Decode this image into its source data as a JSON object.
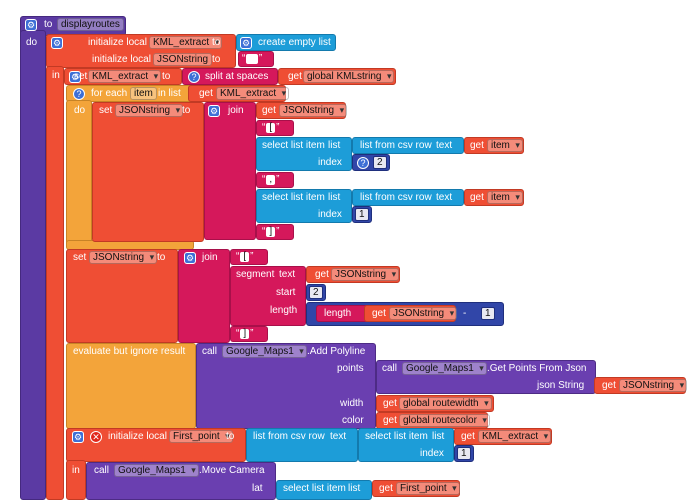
{
  "proc": {
    "to": "to",
    "name": "displayroutes",
    "do": "do"
  },
  "init1": {
    "initialize_local": "initialize local",
    "var1": "KML_extract",
    "to1": "to",
    "create_empty_list": "create empty list",
    "var2": "JSONstring",
    "to2": "to",
    "in": "in"
  },
  "set1": {
    "set": "set",
    "var": "KML_extract",
    "to": "to",
    "split_at_spaces": "split at spaces",
    "get": "get",
    "global_var": "global KMLstring"
  },
  "foreach": {
    "for_each": "for each",
    "item": "item",
    "in_list": "in list",
    "get": "get",
    "list_var": "KML_extract",
    "do": "do"
  },
  "set2": {
    "set": "set",
    "var": "JSONstring",
    "to": "to",
    "join": "join",
    "get": "get",
    "get_var": "JSONstring",
    "str1": "[",
    "select_list_item": "select list item",
    "list": "list",
    "list_from_csv_row": "list from csv row",
    "text": "text",
    "item_var": "item",
    "index": "index",
    "index1": "2",
    "str2": ",",
    "index2": "1",
    "str3": "]"
  },
  "set3": {
    "set": "set",
    "var": "JSONstring",
    "to": "to",
    "join": "join",
    "str1": "[",
    "segment": "segment",
    "text": "text",
    "get": "get",
    "seg_var": "JSONstring",
    "start": "start",
    "start_val": "2",
    "length": "length",
    "length_fn": "length",
    "len_var": "JSONstring",
    "minus": "-",
    "minus_val": "1",
    "str2": "]"
  },
  "evaluate": {
    "label": "evaluate but ignore result",
    "call": "call",
    "component": "Google_Maps1",
    "method": ".Add Polyline",
    "points": "points",
    "call2": "call",
    "component2": "Google_Maps1",
    "method2": ".Get Points From Json",
    "json_string": "json String",
    "get": "get",
    "json_var": "JSONstring",
    "width": "width",
    "width_var": "global routewidth",
    "color": "color",
    "color_var": "global routecolor"
  },
  "init2": {
    "initialize_local": "initialize local",
    "var": "First_point",
    "to": "to",
    "list_from_csv_row": "list from csv row",
    "text": "text",
    "select_list_item": "select list item",
    "list": "list",
    "get": "get",
    "list_var": "KML_extract",
    "index": "index",
    "index_val": "1",
    "in": "in",
    "call": "call",
    "component": "Google_Maps1",
    "method": ".Move Camera",
    "lat": "lat",
    "lat_get_var": "First_point"
  }
}
